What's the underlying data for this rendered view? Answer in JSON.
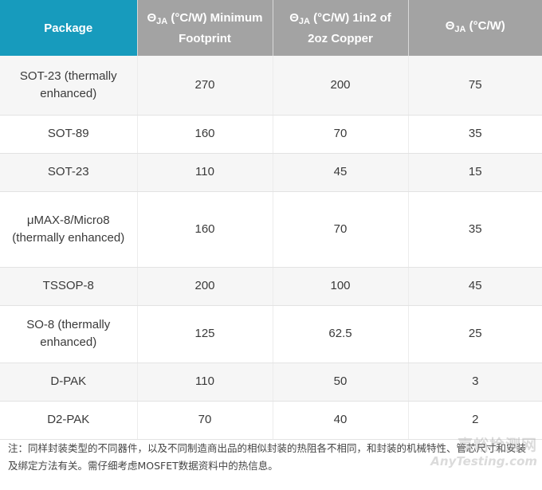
{
  "table": {
    "headers": {
      "package": "Package",
      "min_footprint": {
        "symbol": "Θ",
        "sub": "JA",
        "text": " (°C/W) Minimum Footprint"
      },
      "copper": {
        "symbol": "Θ",
        "sub": "JA",
        "text": " (°C/W) 1in2 of 2oz Copper"
      },
      "plain": {
        "symbol": "Θ",
        "sub": "JA",
        "text": " (°C/W)"
      }
    },
    "rows": [
      {
        "package": "SOT-23 (thermally enhanced)",
        "min_footprint": "270",
        "copper": "200",
        "plain": "75"
      },
      {
        "package": "SOT-89",
        "min_footprint": "160",
        "copper": "70",
        "plain": "35"
      },
      {
        "package": "SOT-23",
        "min_footprint": "110",
        "copper": "45",
        "plain": "15"
      },
      {
        "package": "μMAX-8/Micro8 (thermally enhanced)",
        "min_footprint": "160",
        "copper": "70",
        "plain": "35"
      },
      {
        "package": "TSSOP-8",
        "min_footprint": "200",
        "copper": "100",
        "plain": "45"
      },
      {
        "package": "SO-8 (thermally enhanced)",
        "min_footprint": "125",
        "copper": "62.5",
        "plain": "25"
      },
      {
        "package": "D-PAK",
        "min_footprint": "110",
        "copper": "50",
        "plain": "3"
      },
      {
        "package": "D2-PAK",
        "min_footprint": "70",
        "copper": "40",
        "plain": "2"
      }
    ]
  },
  "note": "注：同样封装类型的不同器件，以及不同制造商出品的相似封装的热阻各不相同，和封装的机械特性、管芯尺寸和安装及绑定方法有关。需仔细考虑MOSFET数据资料中的热信息。",
  "watermark": {
    "cn": "嘉峪检测网",
    "en": "AnyTesting.com"
  }
}
